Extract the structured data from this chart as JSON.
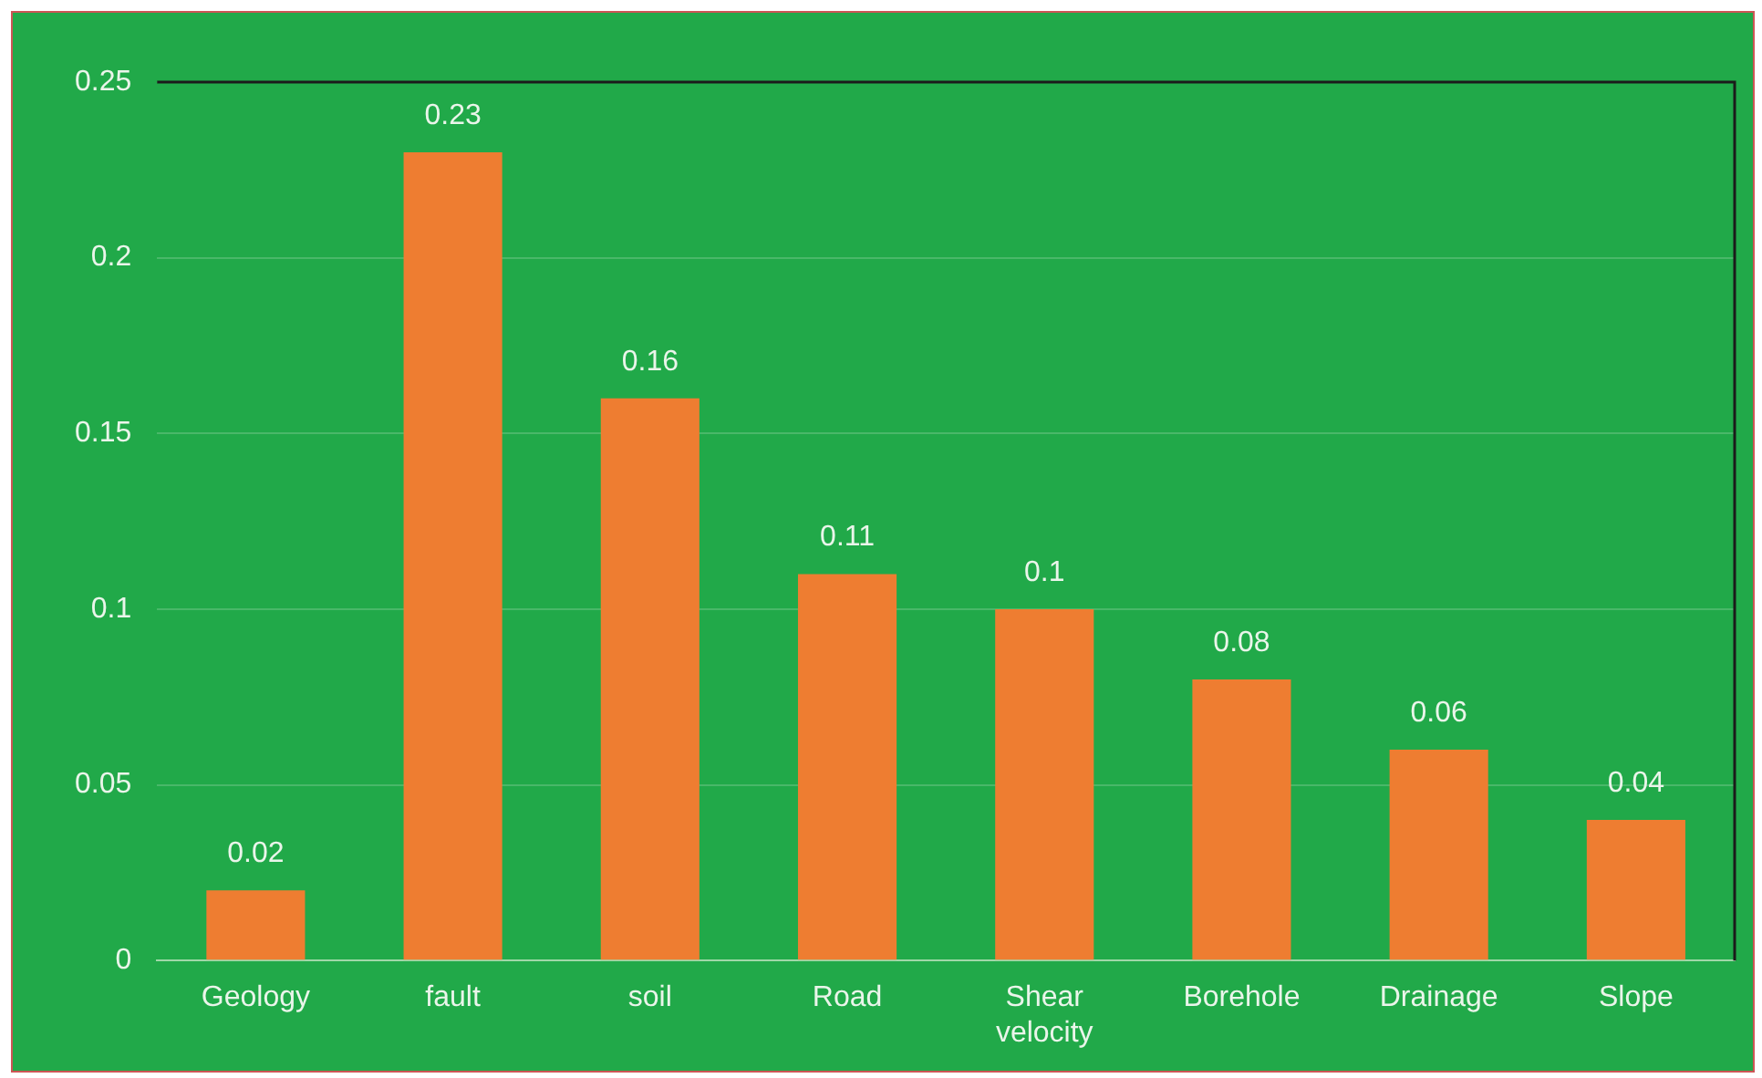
{
  "chart_data": {
    "type": "bar",
    "categories": [
      "Geology",
      "fault",
      "soil",
      "Road",
      "Shear velocity",
      "Borehole",
      "Drainage",
      "Slope"
    ],
    "values": [
      0.02,
      0.23,
      0.16,
      0.11,
      0.1,
      0.08,
      0.06,
      0.04
    ],
    "color": "#ee7d31",
    "ylim": [
      0,
      0.25
    ],
    "yticks": [
      0,
      0.05,
      0.1,
      0.15,
      0.2,
      0.25
    ],
    "grid": "y",
    "data_labels": true,
    "legend": false
  }
}
